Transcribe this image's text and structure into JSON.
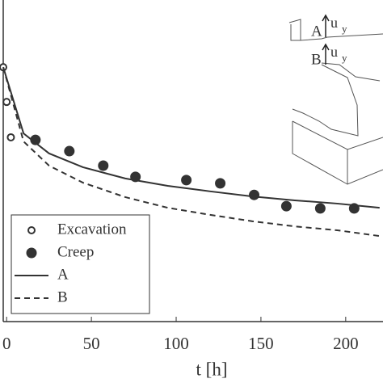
{
  "chart_data": {
    "type": "line",
    "xlabel": "t [h]",
    "xlim": [
      -2,
      222
    ],
    "xticks": [
      0,
      50,
      100,
      150,
      200
    ],
    "ylim": [
      0,
      100
    ],
    "color": "#333333",
    "legend": "lower left",
    "series": [
      {
        "name": "Excavation",
        "marker": "open-circle",
        "x": [
          -2,
          0,
          2.5
        ],
        "values": [
          79.1,
          68.3,
          57.3
        ]
      },
      {
        "name": "Creep",
        "marker": "filled-circle",
        "x": [
          17,
          37,
          57,
          76,
          106,
          126,
          146,
          165,
          185,
          205
        ],
        "values": [
          56.5,
          53.0,
          48.5,
          45.0,
          44.0,
          43.0,
          39.4,
          35.9,
          35.2,
          35.2
        ]
      },
      {
        "name": "A",
        "line": "solid",
        "x": [
          -2,
          10,
          25,
          45,
          70,
          95,
          120,
          145,
          170,
          195,
          220
        ],
        "values": [
          79.1,
          58.5,
          52.3,
          48.0,
          44.5,
          42.2,
          40.5,
          38.9,
          37.7,
          36.7,
          35.4
        ]
      },
      {
        "name": "B",
        "line": "dashed",
        "x": [
          -2,
          10,
          25,
          45,
          70,
          95,
          120,
          145,
          170,
          195,
          220
        ],
        "values": [
          79.1,
          56.0,
          48.5,
          43.2,
          38.7,
          35.4,
          33.2,
          31.2,
          29.6,
          28.4,
          26.6
        ]
      }
    ],
    "inset": {
      "labels": [
        "A",
        "B"
      ],
      "displacement": "u",
      "subscript": "y"
    }
  }
}
